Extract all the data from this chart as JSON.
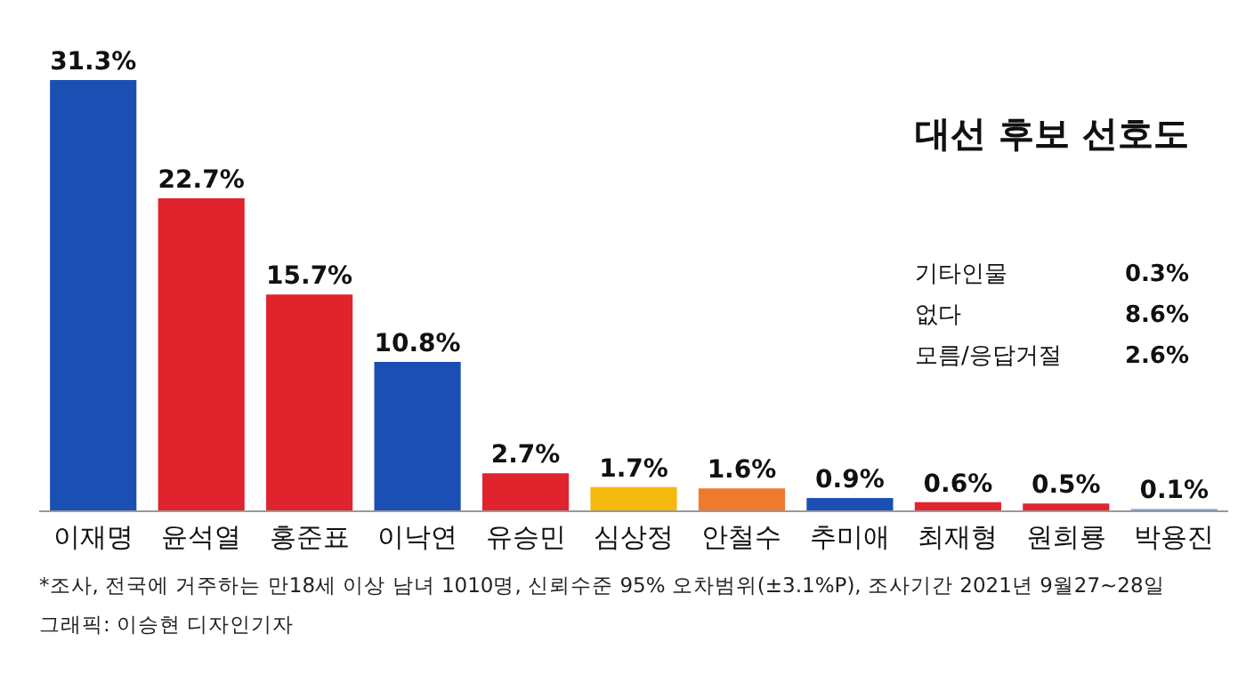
{
  "chart_data": {
    "type": "bar",
    "title": "대선 후보 선호도",
    "categories": [
      "이재명",
      "윤석열",
      "홍준표",
      "이낙연",
      "유승민",
      "심상정",
      "안철수",
      "추미애",
      "최재형",
      "원희룡",
      "박용진"
    ],
    "values": [
      31.3,
      22.7,
      15.7,
      10.8,
      2.7,
      1.7,
      1.6,
      0.9,
      0.6,
      0.5,
      0.1
    ],
    "value_labels": [
      "31.3%",
      "22.7%",
      "15.7%",
      "10.8%",
      "2.7%",
      "1.7%",
      "1.6%",
      "0.9%",
      "0.6%",
      "0.5%",
      "0.1%"
    ],
    "colors": [
      "#1c4fb4",
      "#e0242e",
      "#e0242e",
      "#1c4fb4",
      "#e0242e",
      "#f6b90f",
      "#f07a2c",
      "#1c4fb4",
      "#e0242e",
      "#e0242e",
      "#6fa3e0"
    ],
    "annotations": [
      "기타인물",
      "0.3%",
      "없다",
      "8.6%",
      "모름/응답거절",
      "2.6%",
      "*조사, 전국에 거주하는 만18세 이상 남녀 1010명, 신뢰수준 95% 오차범위(±3.1%P), 조사기간 2021년 9월27~28일",
      "그래픽: 이승현 디자인기자"
    ]
  }
}
